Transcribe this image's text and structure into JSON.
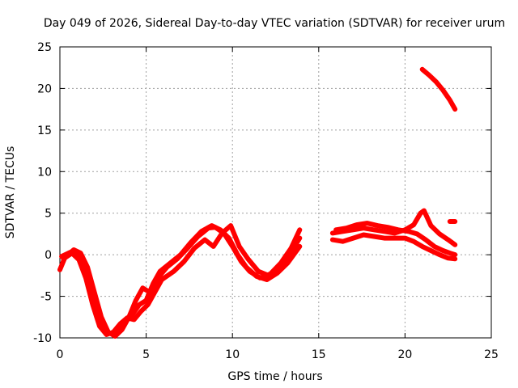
{
  "chart_data": {
    "type": "scatter",
    "title": "Day 049 of 2026, Sidereal Day-to-day VTEC variation (SDTVAR) for receiver urum",
    "xlabel": "GPS time / hours",
    "ylabel": "SDTVAR / TECUs",
    "xlim": [
      0,
      25
    ],
    "ylim": [
      -10,
      25
    ],
    "xticks": [
      "0",
      "5",
      "10",
      "15",
      "20",
      "25"
    ],
    "yticks": [
      "-10",
      "-5",
      "0",
      "5",
      "10",
      "15",
      "20",
      "25"
    ],
    "grid": true,
    "marker_color": "#ff0000",
    "series": [
      {
        "name": "track-1",
        "points": [
          [
            0,
            -1.8
          ],
          [
            0.3,
            -0.3
          ],
          [
            0.8,
            0.6
          ],
          [
            1.2,
            0.2
          ],
          [
            1.6,
            -1.5
          ],
          [
            2.0,
            -4.5
          ],
          [
            2.4,
            -7.5
          ],
          [
            2.8,
            -9.3
          ],
          [
            3.2,
            -9.8
          ],
          [
            3.6,
            -9.0
          ],
          [
            4.0,
            -7.5
          ],
          [
            4.4,
            -5.5
          ],
          [
            4.8,
            -4.0
          ],
          [
            5.2,
            -4.5
          ],
          [
            5.6,
            -3.0
          ],
          [
            6.2,
            -1.5
          ],
          [
            6.8,
            -0.5
          ],
          [
            7.4,
            0.8
          ],
          [
            8.0,
            2.2
          ],
          [
            8.6,
            3.2
          ],
          [
            9.0,
            3.3
          ],
          [
            9.5,
            2.6
          ],
          [
            10.0,
            1.0
          ],
          [
            10.5,
            -0.8
          ],
          [
            11.0,
            -2.0
          ],
          [
            11.6,
            -2.8
          ],
          [
            12.2,
            -2.3
          ],
          [
            12.8,
            -1.0
          ],
          [
            13.4,
            0.8
          ],
          [
            13.9,
            3.0
          ]
        ]
      },
      {
        "name": "track-2",
        "points": [
          [
            0.1,
            -0.2
          ],
          [
            0.6,
            0.3
          ],
          [
            1.0,
            0.0
          ],
          [
            1.4,
            -1.8
          ],
          [
            1.8,
            -4.8
          ],
          [
            2.2,
            -7.8
          ],
          [
            2.6,
            -9.2
          ],
          [
            3.0,
            -9.5
          ],
          [
            3.4,
            -8.8
          ],
          [
            3.8,
            -8.0
          ],
          [
            4.2,
            -7.2
          ],
          [
            4.6,
            -6.0
          ],
          [
            5.0,
            -5.5
          ],
          [
            5.4,
            -3.5
          ],
          [
            5.8,
            -2.0
          ],
          [
            6.4,
            -1.0
          ],
          [
            7.0,
            0.0
          ],
          [
            7.6,
            1.5
          ],
          [
            8.2,
            2.8
          ],
          [
            8.8,
            3.5
          ],
          [
            9.3,
            3.0
          ],
          [
            9.8,
            2.0
          ],
          [
            10.3,
            0.0
          ],
          [
            10.8,
            -1.5
          ],
          [
            11.4,
            -2.6
          ],
          [
            12.0,
            -3.0
          ],
          [
            12.6,
            -2.2
          ],
          [
            13.2,
            -1.0
          ],
          [
            13.9,
            1.0
          ]
        ]
      },
      {
        "name": "track-3",
        "points": [
          [
            0.2,
            -0.5
          ],
          [
            0.7,
            0.2
          ],
          [
            1.1,
            -0.6
          ],
          [
            1.5,
            -2.8
          ],
          [
            1.9,
            -6.0
          ],
          [
            2.3,
            -8.6
          ],
          [
            2.7,
            -9.6
          ],
          [
            3.1,
            -9.3
          ],
          [
            3.5,
            -8.3
          ],
          [
            3.9,
            -7.6
          ],
          [
            4.3,
            -7.8
          ],
          [
            4.7,
            -6.8
          ],
          [
            5.1,
            -6.0
          ],
          [
            5.5,
            -4.5
          ],
          [
            5.9,
            -3.0
          ],
          [
            6.6,
            -2.0
          ],
          [
            7.2,
            -0.8
          ],
          [
            7.8,
            0.8
          ],
          [
            8.4,
            1.8
          ],
          [
            8.9,
            1.0
          ],
          [
            9.4,
            2.6
          ],
          [
            9.9,
            3.5
          ],
          [
            10.4,
            1.0
          ],
          [
            10.9,
            -0.5
          ],
          [
            11.5,
            -2.0
          ],
          [
            12.1,
            -2.5
          ],
          [
            12.7,
            -1.5
          ],
          [
            13.3,
            0.0
          ],
          [
            13.9,
            2.0
          ]
        ]
      },
      {
        "name": "track-4",
        "points": [
          [
            15.8,
            2.6
          ],
          [
            16.4,
            2.8
          ],
          [
            17.0,
            3.0
          ],
          [
            17.6,
            3.2
          ],
          [
            18.2,
            3.0
          ],
          [
            18.8,
            2.8
          ],
          [
            19.4,
            2.6
          ],
          [
            20.0,
            3.0
          ],
          [
            20.5,
            3.6
          ],
          [
            20.9,
            5.0
          ],
          [
            21.1,
            5.3
          ],
          [
            21.5,
            3.5
          ],
          [
            22.0,
            2.5
          ],
          [
            22.5,
            1.8
          ],
          [
            22.9,
            1.2
          ]
        ]
      },
      {
        "name": "track-5",
        "points": [
          [
            15.8,
            1.8
          ],
          [
            16.4,
            1.6
          ],
          [
            17.0,
            2.0
          ],
          [
            17.6,
            2.4
          ],
          [
            18.2,
            2.2
          ],
          [
            18.8,
            2.0
          ],
          [
            19.4,
            2.0
          ],
          [
            20.0,
            2.0
          ],
          [
            20.5,
            1.6
          ],
          [
            21.0,
            1.0
          ],
          [
            21.5,
            0.5
          ],
          [
            22.0,
            0.0
          ],
          [
            22.5,
            -0.4
          ],
          [
            22.9,
            -0.5
          ]
        ]
      },
      {
        "name": "track-6",
        "points": [
          [
            16.0,
            3.0
          ],
          [
            16.6,
            3.2
          ],
          [
            17.2,
            3.6
          ],
          [
            17.8,
            3.8
          ],
          [
            18.4,
            3.5
          ],
          [
            19.0,
            3.3
          ],
          [
            19.6,
            3.0
          ],
          [
            20.2,
            2.8
          ],
          [
            20.7,
            2.5
          ],
          [
            21.2,
            1.8
          ],
          [
            21.7,
            1.0
          ],
          [
            22.2,
            0.5
          ],
          [
            22.6,
            0.2
          ],
          [
            22.9,
            0.0
          ]
        ]
      },
      {
        "name": "track-7",
        "points": [
          [
            21.0,
            22.3
          ],
          [
            21.4,
            21.6
          ],
          [
            21.8,
            20.8
          ],
          [
            22.2,
            19.8
          ],
          [
            22.6,
            18.6
          ],
          [
            22.9,
            17.5
          ]
        ]
      },
      {
        "name": "track-8",
        "points": [
          [
            22.6,
            4.0
          ],
          [
            22.9,
            4.0
          ]
        ]
      }
    ]
  }
}
